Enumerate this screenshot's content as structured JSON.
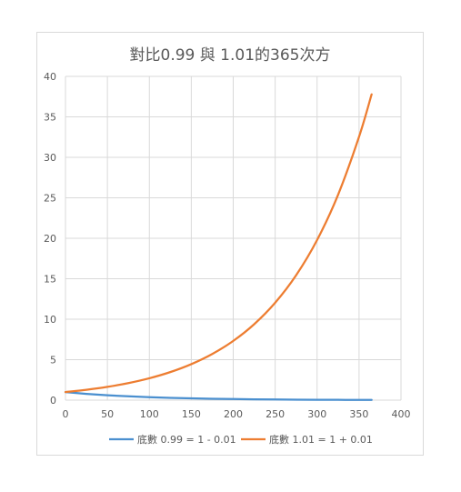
{
  "chart_data": {
    "type": "line",
    "title": "對比0.99 與 1.01的365次方",
    "xlabel": "",
    "ylabel": "",
    "xlim": [
      0,
      400
    ],
    "ylim": [
      0,
      40
    ],
    "x_ticks": [
      0,
      50,
      100,
      150,
      200,
      250,
      300,
      350,
      400
    ],
    "y_ticks": [
      0,
      5,
      10,
      15,
      20,
      25,
      30,
      35,
      40
    ],
    "grid": true,
    "legend_position": "bottom",
    "series": [
      {
        "name": "底數 0.99 = 1 - 0.01",
        "color": "#4a8fcf",
        "x": [
          0,
          25,
          50,
          75,
          100,
          125,
          150,
          175,
          200,
          225,
          250,
          275,
          300,
          325,
          350,
          365
        ],
        "y": [
          1.0,
          0.778,
          0.605,
          0.471,
          0.366,
          0.285,
          0.221,
          0.172,
          0.134,
          0.104,
          0.081,
          0.063,
          0.049,
          0.038,
          0.03,
          0.026
        ]
      },
      {
        "name": "底數 1.01 = 1 + 0.01",
        "color": "#ed7d31",
        "x": [
          0,
          25,
          50,
          75,
          100,
          125,
          150,
          175,
          200,
          225,
          250,
          275,
          300,
          325,
          350,
          365
        ],
        "y": [
          1.0,
          1.282,
          1.645,
          2.109,
          2.705,
          3.469,
          4.448,
          5.704,
          7.316,
          9.382,
          12.032,
          15.43,
          19.788,
          25.377,
          32.544,
          37.783
        ]
      }
    ]
  }
}
